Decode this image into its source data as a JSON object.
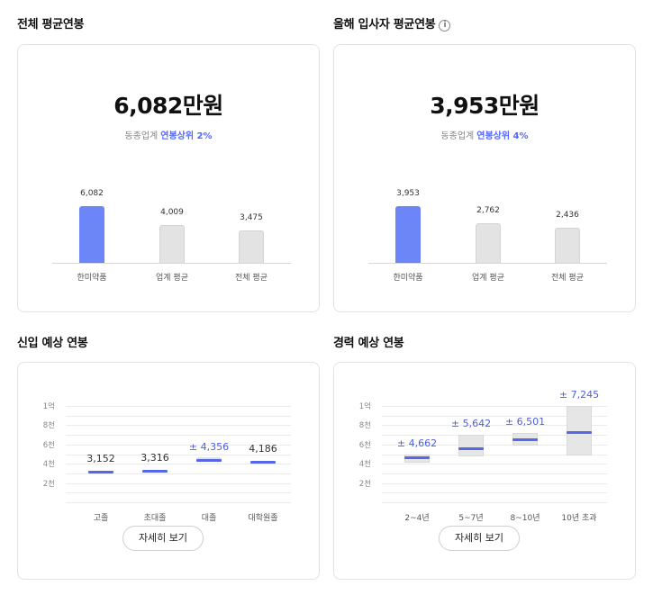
{
  "overall": {
    "title": "전체 평균연봉",
    "value": "6,082만원",
    "rank_prefix": "동종업계",
    "rank_highlight": "연봉상위 2%",
    "chart_data": {
      "type": "bar",
      "categories": [
        "한미약품",
        "업계 평균",
        "전체 평균"
      ],
      "values": [
        6082,
        4009,
        3475
      ],
      "value_labels": [
        "6,082",
        "4,009",
        "3,475"
      ],
      "highlight_color": "#6c85f7",
      "other_color": "#e3e3e3"
    }
  },
  "newcomer_this_year": {
    "title": "올해 입사자 평균연봉",
    "info_icon": "info-circle-icon",
    "value": "3,953만원",
    "rank_prefix": "동종업계",
    "rank_highlight": "연봉상위 4%",
    "chart_data": {
      "type": "bar",
      "categories": [
        "한미약품",
        "업계 평균",
        "전체 평균"
      ],
      "values": [
        3953,
        2762,
        2436
      ],
      "value_labels": [
        "3,953",
        "2,762",
        "2,436"
      ],
      "highlight_color": "#6c85f7",
      "other_color": "#e3e3e3"
    }
  },
  "entry_expected": {
    "title": "신입 예상 연봉",
    "button_label": "자세히 보기",
    "chart_data": {
      "type": "scatter",
      "y_ticks": [
        "1억",
        "8천",
        "6천",
        "4천",
        "2천"
      ],
      "categories": [
        "고졸",
        "초대졸",
        "대졸",
        "대학원졸"
      ],
      "values": [
        3152,
        3316,
        4356,
        4186
      ],
      "value_labels": [
        "3,152",
        "3,316",
        "± 4,356",
        "4,186"
      ],
      "range_shown": [
        false,
        false,
        true,
        false
      ],
      "ylim": [
        0,
        10000
      ],
      "mark_color": "#5468e8"
    }
  },
  "career_expected": {
    "title": "경력 예상 연봉",
    "button_label": "자세히 보기",
    "chart_data": {
      "type": "scatter",
      "y_ticks": [
        "1억",
        "8천",
        "6천",
        "4천",
        "2천"
      ],
      "categories": [
        "2~4년",
        "5~7년",
        "8~10년",
        "10년 초과"
      ],
      "values": [
        4662,
        5642,
        6501,
        7245
      ],
      "value_labels": [
        "± 4,662",
        "± 5,642",
        "± 6,501",
        "± 7,245"
      ],
      "ranges": [
        [
          4200,
          5000
        ],
        [
          4800,
          7000
        ],
        [
          5900,
          7200
        ],
        [
          4900,
          10000
        ]
      ],
      "ylim": [
        0,
        10000
      ],
      "mark_color": "#5468e8"
    }
  }
}
